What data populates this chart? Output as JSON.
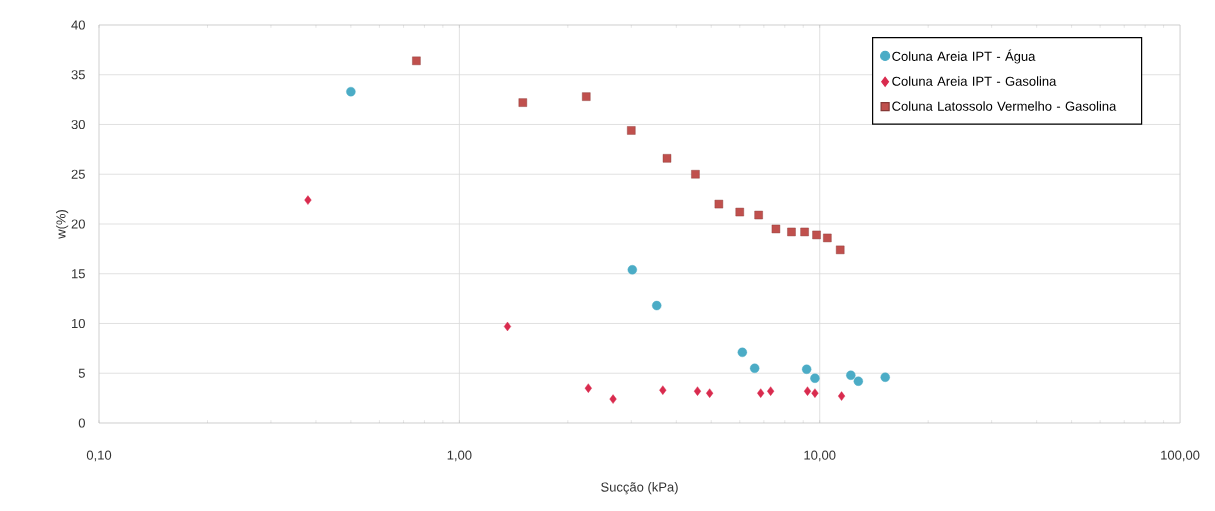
{
  "chart_data": {
    "type": "scatter",
    "xlabel": "Sucção (kPa)",
    "ylabel": "w(%)",
    "log": "x",
    "grid": true,
    "legend": "top right",
    "xlim": [
      0.1,
      100
    ],
    "ylim": [
      0,
      40
    ],
    "xticks": [
      {
        "value": 0.1,
        "label": "0,10"
      },
      {
        "value": 1,
        "label": "1,00"
      },
      {
        "value": 10,
        "label": "10,00"
      },
      {
        "value": 100,
        "label": "100,00"
      }
    ],
    "yticks": [
      0,
      5,
      10,
      15,
      20,
      25,
      30,
      35,
      40
    ],
    "series": [
      {
        "name": "Coluna Areia IPT - Água",
        "color": "#4bacc6",
        "marker": "circle",
        "x": [
          0.5,
          3.02,
          3.53,
          6.1,
          6.6,
          9.2,
          9.7,
          12.2,
          12.8,
          15.2
        ],
        "values": [
          33.3,
          15.4,
          11.8,
          7.1,
          5.5,
          5.4,
          4.5,
          4.8,
          4.2,
          4.6
        ]
      },
      {
        "name": "Coluna Areia IPT - Gasolina",
        "color": "#d92b4e",
        "marker": "diamond",
        "x": [
          0.38,
          1.36,
          2.28,
          2.67,
          3.67,
          4.58,
          4.95,
          6.86,
          7.31,
          9.25,
          9.7,
          11.5
        ],
        "values": [
          22.4,
          9.7,
          3.5,
          2.4,
          3.3,
          3.2,
          3.0,
          3.0,
          3.2,
          3.2,
          3.0,
          2.7
        ]
      },
      {
        "name": "Coluna Latossolo Vermelho - Gasolina",
        "color": "#c0504d",
        "marker": "square",
        "x": [
          0.76,
          1.5,
          2.25,
          3.0,
          3.77,
          4.52,
          5.25,
          6.0,
          6.77,
          7.56,
          8.35,
          9.08,
          9.8,
          10.5,
          11.4
        ],
        "values": [
          36.4,
          32.2,
          32.8,
          29.4,
          26.6,
          25.0,
          22.0,
          21.2,
          20.9,
          19.5,
          19.2,
          19.2,
          18.9,
          18.6,
          17.4
        ]
      }
    ]
  }
}
